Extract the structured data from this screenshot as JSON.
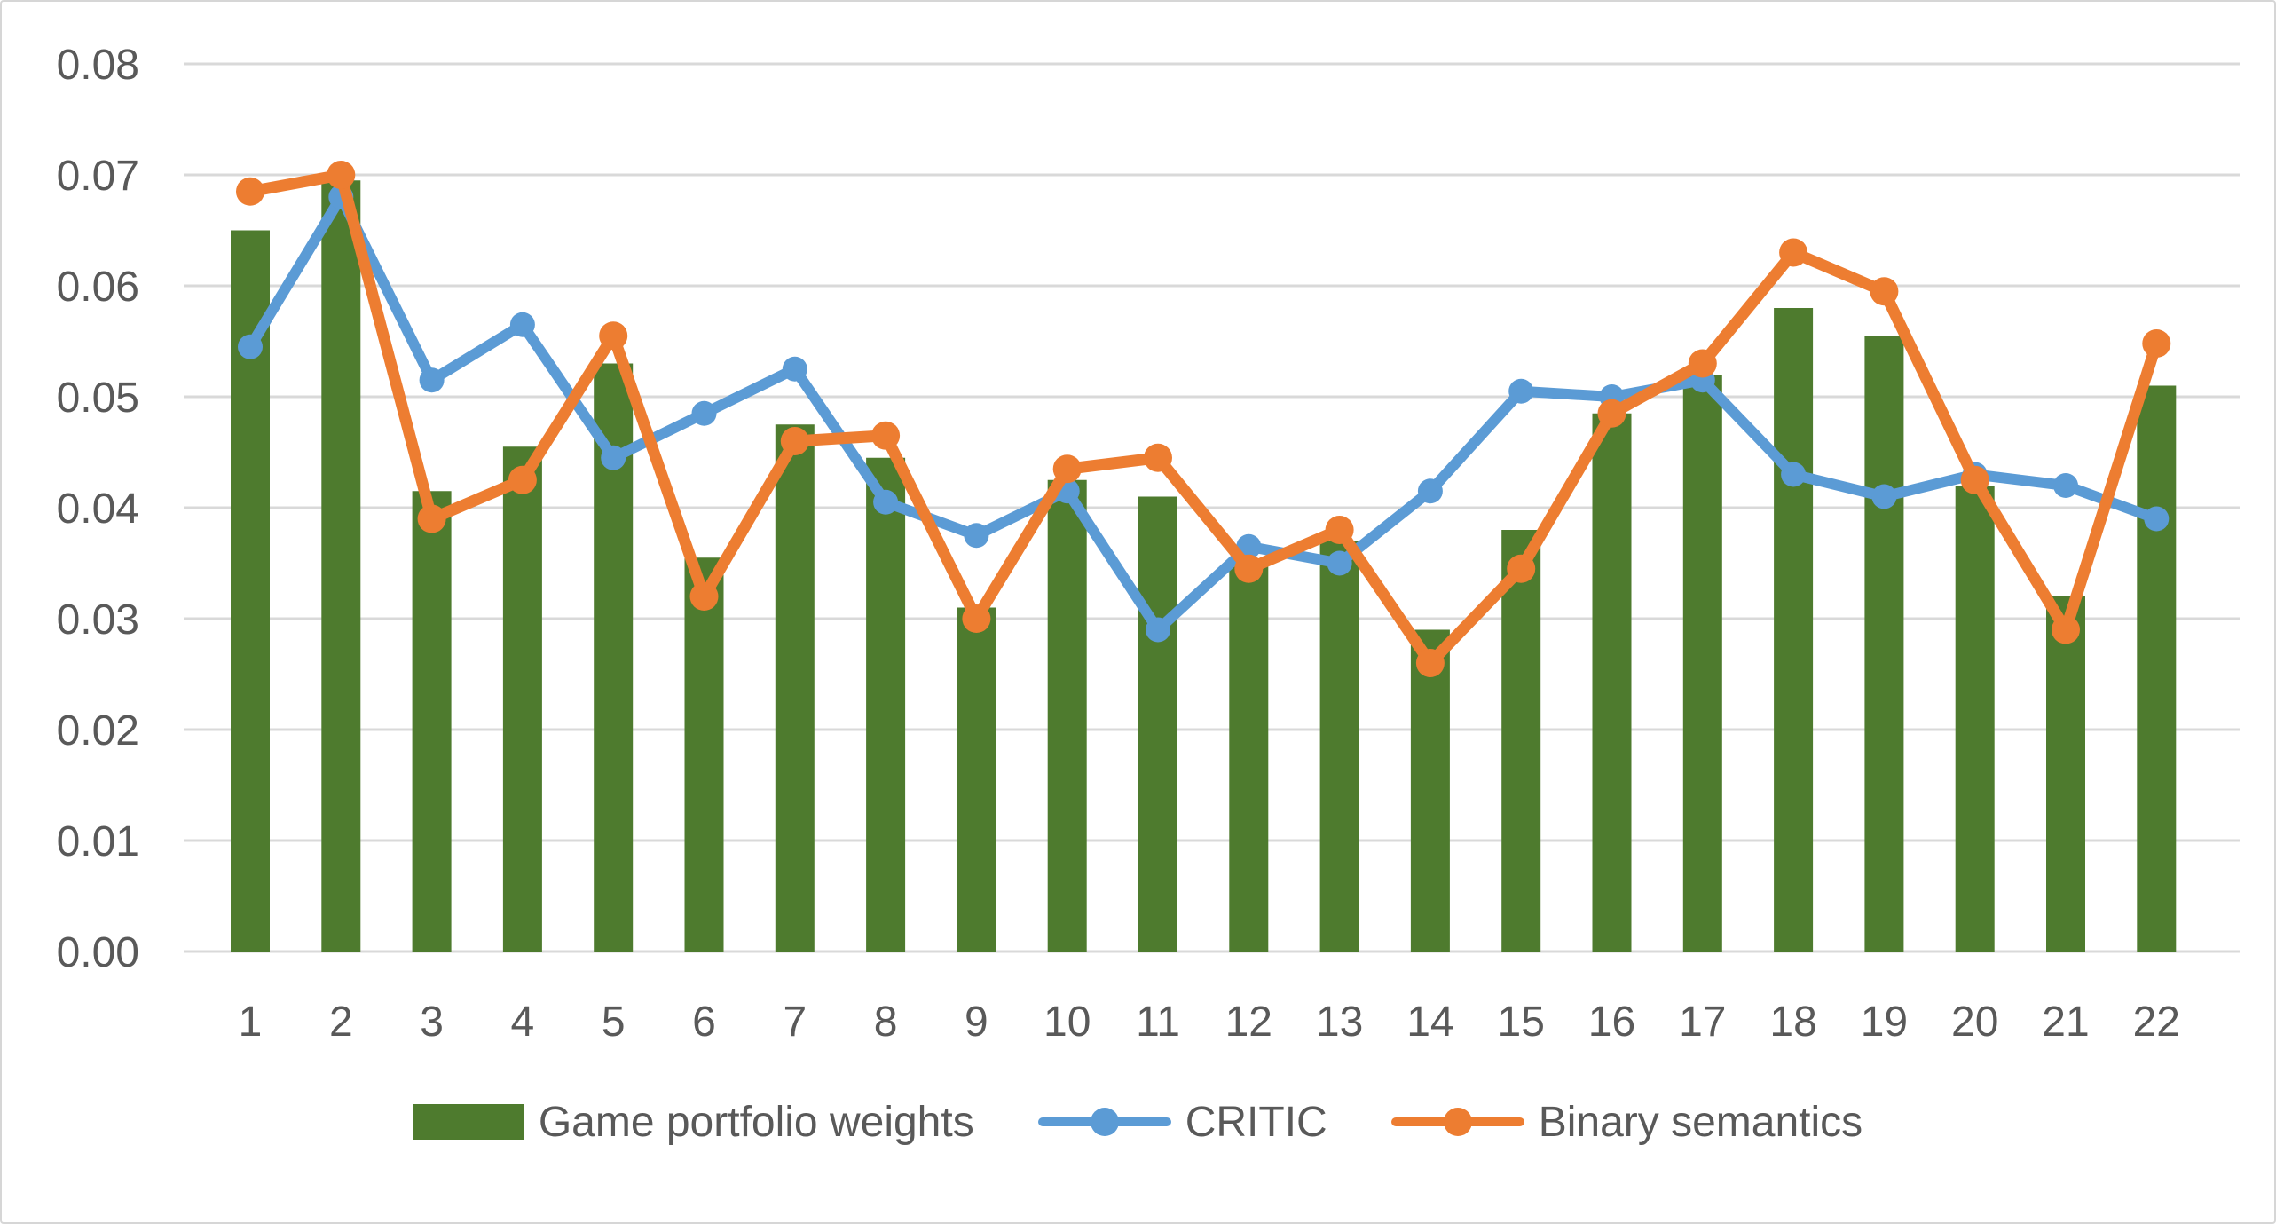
{
  "chart_data": {
    "type": "bar",
    "subtype": "bar-line-combo",
    "title": "",
    "xlabel": "",
    "ylabel": "",
    "categories": [
      "1",
      "2",
      "3",
      "4",
      "5",
      "6",
      "7",
      "8",
      "9",
      "10",
      "11",
      "12",
      "13",
      "14",
      "15",
      "16",
      "17",
      "18",
      "19",
      "20",
      "21",
      "22"
    ],
    "series": [
      {
        "name": "Game portfolio weights",
        "type": "bar",
        "color": "#4E7B2E",
        "values": [
          0.065,
          0.0695,
          0.0415,
          0.0455,
          0.053,
          0.0355,
          0.0475,
          0.0445,
          0.031,
          0.0425,
          0.041,
          0.035,
          0.037,
          0.029,
          0.038,
          0.0485,
          0.052,
          0.058,
          0.0555,
          0.042,
          0.032,
          0.051
        ]
      },
      {
        "name": "CRITIC",
        "type": "line",
        "color": "#5B9BD5",
        "values": [
          0.0545,
          0.068,
          0.0515,
          0.0565,
          0.0445,
          0.0485,
          0.0525,
          0.0405,
          0.0375,
          0.0415,
          0.029,
          0.0365,
          0.035,
          0.0415,
          0.0505,
          0.05,
          0.0515,
          0.043,
          0.041,
          0.043,
          0.042,
          0.039
        ]
      },
      {
        "name": "Binary semantics",
        "type": "line",
        "color": "#ED7D31",
        "values": [
          0.0685,
          0.07,
          0.039,
          0.0425,
          0.0555,
          0.032,
          0.046,
          0.0465,
          0.03,
          0.0435,
          0.0445,
          0.0345,
          0.038,
          0.026,
          0.0345,
          0.0485,
          0.053,
          0.063,
          0.0595,
          0.0425,
          0.029,
          0.0548
        ]
      }
    ],
    "ylim": [
      0,
      0.08
    ],
    "ytick_step": 0.01,
    "ytick_labels": [
      "0.00",
      "0.01",
      "0.02",
      "0.03",
      "0.04",
      "0.05",
      "0.06",
      "0.07",
      "0.08"
    ],
    "grid": true,
    "gridline_color": "#d9d9d9",
    "axis_text_color": "#595959",
    "legend_position": "bottom"
  }
}
